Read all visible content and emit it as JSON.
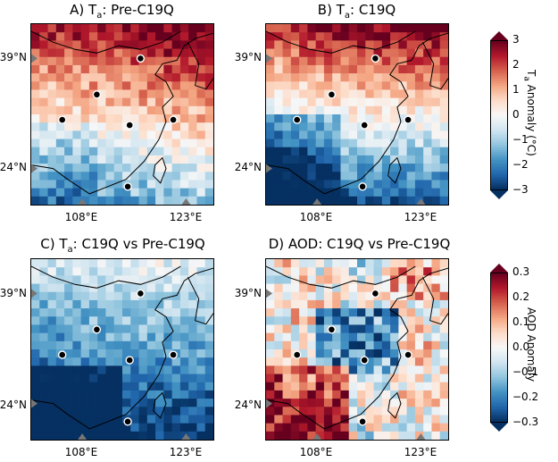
{
  "chart_data": [
    {
      "type": "heatmap",
      "panel": "A",
      "title_prefix": "A) T",
      "title_sub": "a",
      "title_suffix": ": Pre-C19Q",
      "colorbar": "ta",
      "pattern": "warm_north",
      "ylabels": [
        "39°N",
        "24°N"
      ],
      "xlabels": [
        "108°E",
        "123°E"
      ]
    },
    {
      "type": "heatmap",
      "panel": "B",
      "title_prefix": "B) T",
      "title_sub": "a",
      "title_suffix": ": C19Q",
      "colorbar": "ta",
      "pattern": "warm_north_cold_south",
      "ylabels": [
        "39°N",
        "24°N"
      ],
      "xlabels": [
        "108°E",
        "123°E"
      ]
    },
    {
      "type": "heatmap",
      "panel": "C",
      "title_prefix": "C) T",
      "title_sub": "a",
      "title_suffix": ": C19Q vs Pre-C19Q",
      "colorbar": "ta",
      "pattern": "cold_south",
      "ylabels": [
        "39°N",
        "24°N"
      ],
      "xlabels": [
        "108°E",
        "123°E"
      ]
    },
    {
      "type": "heatmap",
      "panel": "D",
      "title_prefix": "D) AOD: C19Q vs Pre-C19Q",
      "title_sub": "",
      "title_suffix": "",
      "colorbar": "aod",
      "pattern": "aod",
      "ylabels": [
        "39°N",
        "24°N"
      ],
      "xlabels": [
        "108°E",
        "123°E"
      ]
    }
  ],
  "colorbars": {
    "ta": {
      "label_prefix": "T",
      "label_sub": "a",
      "label_suffix": " Anomaly (°C)",
      "range": [
        -3,
        3
      ],
      "ticks": [
        "3",
        "2",
        "1",
        "0",
        "−1",
        "−2",
        "−3"
      ],
      "tick_values": [
        3,
        2,
        1,
        0,
        -1,
        -2,
        -3
      ]
    },
    "aod": {
      "label_prefix": "AOD Anomaly",
      "label_sub": "",
      "label_suffix": "",
      "range": [
        -0.3,
        0.3
      ],
      "ticks": [
        "0.3",
        "0.2",
        "0.1",
        "0.0",
        "−0.1",
        "−0.2",
        "−0.3"
      ],
      "tick_values": [
        0.3,
        0.2,
        0.1,
        0.0,
        -0.1,
        -0.2,
        -0.3
      ]
    }
  },
  "colors": {
    "cmap": [
      "#053061",
      "#2166ac",
      "#4393c3",
      "#92c5de",
      "#d1e5f0",
      "#f7f7f7",
      "#fddbc7",
      "#f4a582",
      "#d6604d",
      "#b2182b",
      "#67001f"
    ],
    "marker_fill": "#000000",
    "marker_edge": "#ffffff",
    "coast": "#000000",
    "tick_marker": "#777777"
  }
}
